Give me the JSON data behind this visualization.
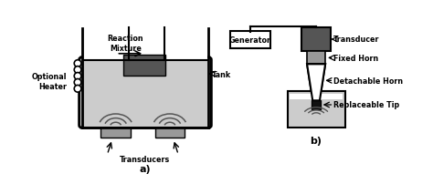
{
  "background_color": "#ffffff",
  "tank_fill": "#cccccc",
  "speckle_color": "#aaaaaa",
  "dark_gray": "#555555",
  "medium_gray": "#999999",
  "black": "#000000",
  "white": "#ffffff",
  "labels_a": {
    "reaction_mixture": "Reaction\nMixture",
    "optional_heater": "Optional\nHeater",
    "tank": "Tank",
    "transducers": "Transducers",
    "label": "a)"
  },
  "labels_b": {
    "generator": "Generator",
    "transducer": "Transducer",
    "fixed_horn": "Fixed Horn",
    "detachable_horn": "Detachable Horn",
    "replaceable_tip": "Replaceable Tip",
    "label": "b)"
  }
}
